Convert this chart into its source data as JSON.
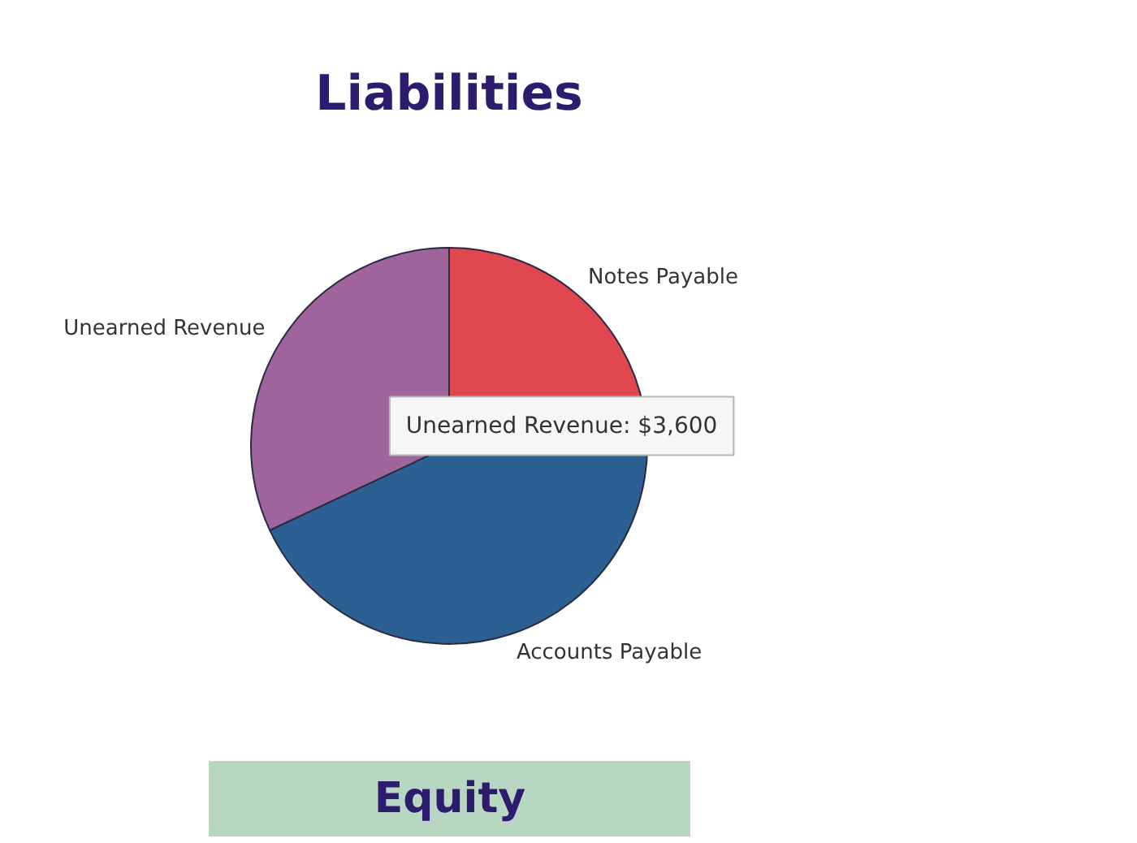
{
  "chart_data": [
    {
      "type": "pie",
      "title": "Liabilities",
      "categories": [
        "Notes Payable",
        "Accounts Payable",
        "Unearned Revenue"
      ],
      "values": [
        22,
        46,
        32
      ],
      "colors": [
        "#e0474f",
        "#2c5f92",
        "#9e649b"
      ],
      "annotations": [
        "Unearned Revenue: $3,600"
      ]
    },
    {
      "type": "other",
      "title": "Equity",
      "color": "#b8d7c3"
    }
  ]
}
